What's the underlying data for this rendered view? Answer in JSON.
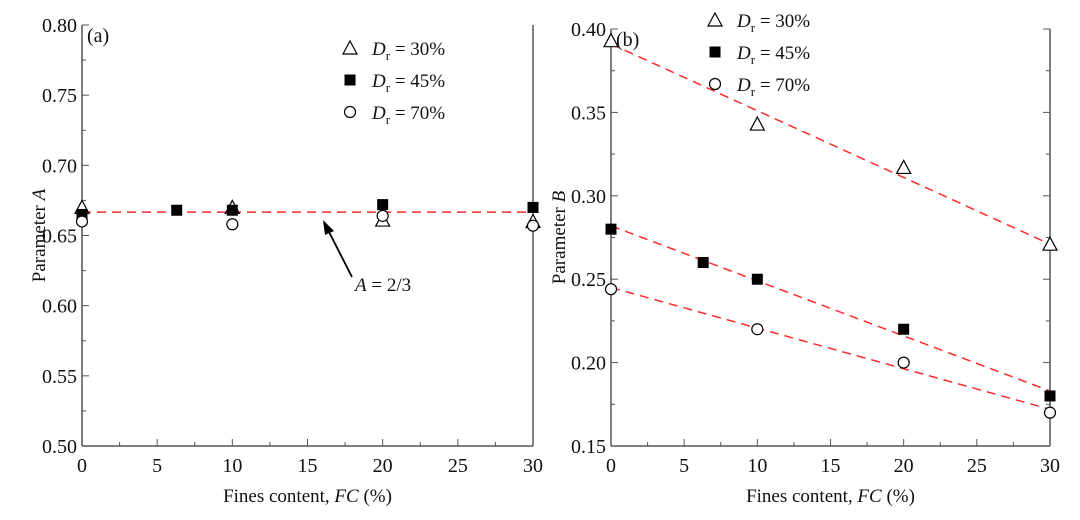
{
  "chart_data": [
    {
      "type": "scatter",
      "panel": "(a)",
      "xlabel": "Fines content, FC (%)",
      "ylabel": "Parameter  A",
      "xlim": [
        0,
        30
      ],
      "ylim": [
        0.5,
        0.8
      ],
      "xticks": [
        "0",
        "5",
        "10",
        "15",
        "20",
        "25",
        "30"
      ],
      "yticks": [
        "0.50",
        "0.55",
        "0.60",
        "0.65",
        "0.70",
        "0.75",
        "0.80"
      ],
      "series": [
        {
          "name": "Dr = 30%",
          "marker": "triangle",
          "x": [
            0,
            10,
            20,
            30
          ],
          "y": [
            0.67,
            0.67,
            0.661,
            0.66
          ]
        },
        {
          "name": "Dr = 45%",
          "marker": "square",
          "x": [
            0,
            6.3,
            10,
            20,
            30
          ],
          "y": [
            0.665,
            0.668,
            0.668,
            0.672,
            0.67
          ]
        },
        {
          "name": "Dr = 70%",
          "marker": "circle",
          "x": [
            0,
            10,
            20,
            30
          ],
          "y": [
            0.66,
            0.658,
            0.664,
            0.657
          ]
        }
      ],
      "fit_lines": [
        {
          "x": [
            0,
            30
          ],
          "y": [
            0.6667,
            0.6667
          ]
        }
      ],
      "annotation": "A =  2/3",
      "legend": "top-right"
    },
    {
      "type": "scatter",
      "panel": "(b)",
      "xlabel": "Fines content, FC (%)",
      "ylabel": "Parameter B",
      "xlim": [
        0,
        30
      ],
      "ylim": [
        0.15,
        0.4
      ],
      "xticks": [
        "0",
        "5",
        "10",
        "15",
        "20",
        "25",
        "30"
      ],
      "yticks": [
        "0.15",
        "0.20",
        "0.25",
        "0.30",
        "0.35",
        "0.40"
      ],
      "series": [
        {
          "name": "Dr = 30%",
          "marker": "triangle",
          "x": [
            0,
            10,
            20,
            30
          ],
          "y": [
            0.393,
            0.343,
            0.317,
            0.271
          ]
        },
        {
          "name": "Dr = 45%",
          "marker": "square",
          "x": [
            0,
            6.3,
            10,
            20,
            30
          ],
          "y": [
            0.28,
            0.26,
            0.25,
            0.22,
            0.18
          ]
        },
        {
          "name": "Dr = 70%",
          "marker": "circle",
          "x": [
            0,
            10,
            20,
            30
          ],
          "y": [
            0.244,
            0.22,
            0.2,
            0.17
          ]
        }
      ],
      "fit_lines": [
        {
          "x": [
            0,
            30
          ],
          "y": [
            0.391,
            0.271
          ]
        },
        {
          "x": [
            0,
            30
          ],
          "y": [
            0.282,
            0.183
          ]
        },
        {
          "x": [
            0,
            30
          ],
          "y": [
            0.245,
            0.172
          ]
        }
      ],
      "legend": "top-right"
    }
  ],
  "legend_labels": [
    {
      "d": "D",
      "sub": "r",
      "rest": " = 30%"
    },
    {
      "d": "D",
      "sub": "r",
      "rest": " = 45%"
    },
    {
      "d": "D",
      "sub": "r",
      "rest": " = 70%"
    }
  ],
  "colors": {
    "fit": "#ff2a2a",
    "axis": "#555555"
  }
}
